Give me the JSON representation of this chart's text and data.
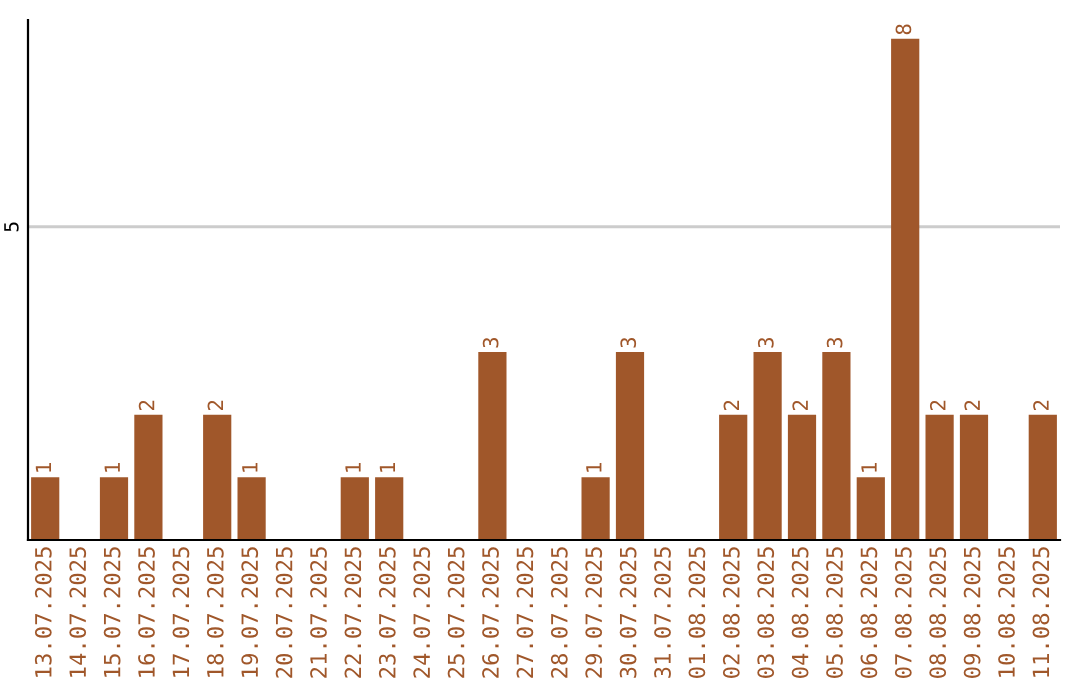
{
  "chart_data": {
    "type": "bar",
    "categories": [
      "13.07.2025",
      "14.07.2025",
      "15.07.2025",
      "16.07.2025",
      "17.07.2025",
      "18.07.2025",
      "19.07.2025",
      "20.07.2025",
      "21.07.2025",
      "22.07.2025",
      "23.07.2025",
      "24.07.2025",
      "25.07.2025",
      "26.07.2025",
      "27.07.2025",
      "28.07.2025",
      "29.07.2025",
      "30.07.2025",
      "31.07.2025",
      "01.08.2025",
      "02.08.2025",
      "03.08.2025",
      "04.08.2025",
      "05.08.2025",
      "06.08.2025",
      "07.08.2025",
      "08.08.2025",
      "09.08.2025",
      "10.08.2025",
      "11.08.2025"
    ],
    "values": [
      1,
      null,
      1,
      2,
      null,
      2,
      1,
      null,
      null,
      1,
      1,
      null,
      null,
      3,
      null,
      null,
      1,
      3,
      null,
      null,
      2,
      3,
      2,
      3,
      1,
      8,
      2,
      2,
      null,
      2
    ],
    "color": "#a0572a",
    "ylim": [
      0,
      8.3
    ],
    "yticks": [
      5
    ],
    "grid": "y",
    "data_labels": true
  }
}
